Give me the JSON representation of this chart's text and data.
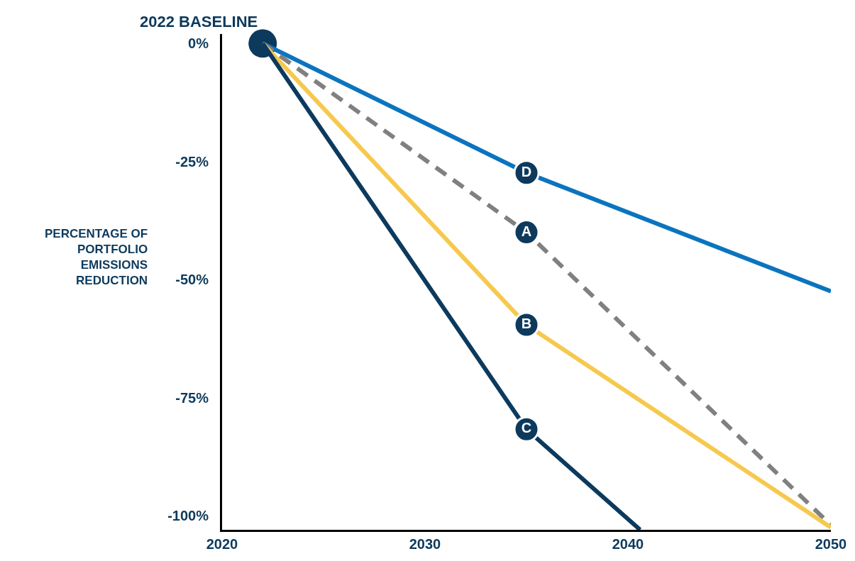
{
  "chart_data": {
    "type": "line",
    "ylabel": "PERCENTAGE OF PORTFOLIO EMISSIONS REDUCTION",
    "xlim": [
      2020,
      2050
    ],
    "xticks": [
      2020,
      2030,
      2040,
      2050
    ],
    "ylim": [
      -103,
      2
    ],
    "yticks": [
      {
        "value": 0,
        "label": "0%"
      },
      {
        "value": -25,
        "label": "-25%"
      },
      {
        "value": -50,
        "label": "-50%"
      },
      {
        "value": -75,
        "label": "-75%"
      },
      {
        "value": -100,
        "label": "-100%"
      }
    ],
    "annotations": [
      {
        "text": "2022 BASELINE",
        "x": 2022,
        "y": 0
      }
    ],
    "series": [
      {
        "name": "D",
        "color": "#0b74bf",
        "x": [
          2022,
          2035,
          2050
        ],
        "values": [
          0,
          -27.4,
          -52.5
        ],
        "line_style": "solid"
      },
      {
        "name": "A",
        "color": "#808080",
        "x": [
          2022,
          2035,
          2050
        ],
        "values": [
          0,
          -40,
          -102
        ],
        "line_style": "dashed"
      },
      {
        "name": "B",
        "color": "#f6c94e",
        "x": [
          2022,
          2035,
          2050
        ],
        "values": [
          0,
          -59.6,
          -102.5
        ],
        "line_style": "solid"
      },
      {
        "name": "C",
        "color": "#0c3a5e",
        "x": [
          2022,
          2035,
          2040.6
        ],
        "values": [
          0,
          -81.7,
          -103
        ],
        "line_style": "solid"
      },
      {
        "type": "scatter",
        "color": "#0d3a5c",
        "x": [
          2022
        ],
        "values": [
          0
        ],
        "marker": "circle"
      }
    ]
  }
}
